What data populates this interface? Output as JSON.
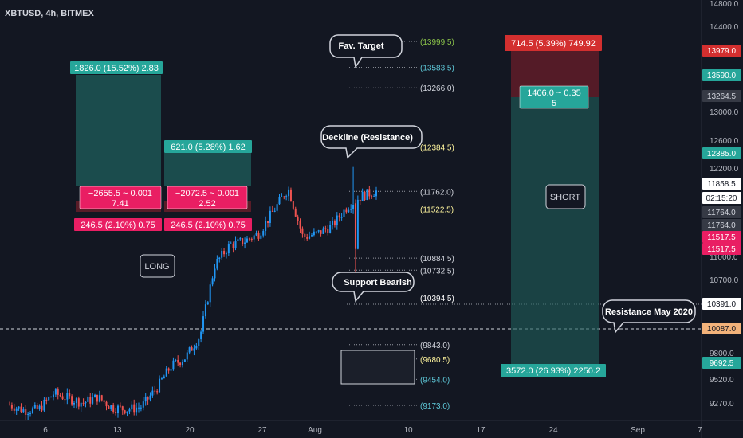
{
  "header": {
    "symbol_label": "XBTUSD, 4h, BITMEX"
  },
  "colors": {
    "background": "#131722",
    "up": "#2196f3",
    "down": "#ef5350",
    "profit_zone": "#1f5f5c",
    "loss_zone": "#6b1e2a",
    "label_teal": "#26a69a",
    "label_pink": "#e91e63",
    "label_red": "#d32f2f",
    "grey_label": "#363a45",
    "orange_label": "#f2b27a"
  },
  "chart_data": {
    "type": "candlestick",
    "y_axis": {
      "ticks": [
        "14800.0",
        "14400.0",
        "13000.0",
        "12600.0",
        "12200.0",
        "11800.0",
        "11400.0",
        "11000.0",
        "10700.0",
        "9800.0",
        "9520.0",
        "9270.0"
      ],
      "scale": "log"
    },
    "x_axis": {
      "ticks": [
        "6",
        "13",
        "20",
        "27",
        "Aug",
        "10",
        "17",
        "24",
        "Sep",
        "7"
      ]
    },
    "price_path": [
      {
        "t": "Jul 1",
        "p": 9180
      },
      {
        "t": "Jul 3",
        "p": 9120
      },
      {
        "t": "Jul 5",
        "p": 9130
      },
      {
        "t": "Jul 6",
        "p": 9300
      },
      {
        "t": "Jul 8",
        "p": 9250
      },
      {
        "t": "Jul 10",
        "p": 9200
      },
      {
        "t": "Jul 13",
        "p": 9260
      },
      {
        "t": "Jul 15",
        "p": 9150
      },
      {
        "t": "Jul 17",
        "p": 9130
      },
      {
        "t": "Jul 20",
        "p": 9160
      },
      {
        "t": "Jul 22",
        "p": 9350
      },
      {
        "t": "Jul 24",
        "p": 9600
      },
      {
        "t": "Jul 25",
        "p": 9700
      },
      {
        "t": "Jul 26",
        "p": 9950
      },
      {
        "t": "Jul 27",
        "p": 10800
      },
      {
        "t": "Jul 28",
        "p": 11050
      },
      {
        "t": "Jul 29",
        "p": 11100
      },
      {
        "t": "Jul 30",
        "p": 11200
      },
      {
        "t": "Jul 31",
        "p": 11500
      },
      {
        "t": "Aug 1",
        "p": 11800
      },
      {
        "t": "Aug 2",
        "p": 11150
      },
      {
        "t": "Aug 3",
        "p": 11200
      },
      {
        "t": "Aug 4",
        "p": 11300
      },
      {
        "t": "Aug 5",
        "p": 11550
      },
      {
        "t": "Aug 6",
        "p": 11700
      },
      {
        "t": "Aug 7",
        "p": 11764
      }
    ],
    "levels": [
      {
        "label": "(13999.5)",
        "value": 13999.5,
        "color": "#8bc34a"
      },
      {
        "label": "(13583.5)",
        "value": 13583.5,
        "color": "#5ec8d8"
      },
      {
        "label": "(13266.0)",
        "value": 13266.0,
        "color": "#d1d4dc"
      },
      {
        "label": "(12384.5)",
        "value": 12384.5,
        "color": "#fff59d"
      },
      {
        "label": "(11762.0)",
        "value": 11762.0,
        "color": "#d1d4dc"
      },
      {
        "label": "(11522.5)",
        "value": 11522.5,
        "color": "#fff59d"
      },
      {
        "label": "(10884.5)",
        "value": 10884.5,
        "color": "#d1d4dc"
      },
      {
        "label": "(10732.5)",
        "value": 10732.5,
        "color": "#d1d4dc"
      },
      {
        "label": "(10394.5)",
        "value": 10394.5,
        "color": "#ffffff"
      },
      {
        "label": "(9843.0)",
        "value": 9843.0,
        "color": "#d1d4dc"
      },
      {
        "label": "(9680.5)",
        "value": 9680.5,
        "color": "#fff59d"
      },
      {
        "label": "(9454.0)",
        "value": 9454.0,
        "color": "#5ec8d8"
      },
      {
        "label": "(9173.0)",
        "value": 9173.0,
        "color": "#5ec8d8"
      }
    ],
    "axis_price_labels": [
      {
        "text": "13979.0",
        "bg": "#d32f2f",
        "fg": "#ffffff"
      },
      {
        "text": "13590.0",
        "bg": "#26a69a",
        "fg": "#ffffff"
      },
      {
        "text": "13264.5",
        "bg": "#363a45",
        "fg": "#d1d4dc"
      },
      {
        "text": "12385.0",
        "bg": "#26a69a",
        "fg": "#ffffff"
      },
      {
        "text": "11858.5",
        "bg": "#ffffff",
        "fg": "#131722"
      },
      {
        "text": "02:15:20",
        "bg": "#ffffff",
        "fg": "#131722"
      },
      {
        "text": "11764.0",
        "bg": "#363a45",
        "fg": "#d1d4dc"
      },
      {
        "text": "11764.0",
        "bg": "#363a45",
        "fg": "#d1d4dc"
      },
      {
        "text": "11517.5",
        "bg": "#e91e63",
        "fg": "#ffffff"
      },
      {
        "text": "11517.5",
        "bg": "#e91e63",
        "fg": "#ffffff"
      },
      {
        "text": "10391.0",
        "bg": "#ffffff",
        "fg": "#131722"
      },
      {
        "text": "10087.0",
        "bg": "#f2b27a",
        "fg": "#131722"
      },
      {
        "text": "9692.5",
        "bg": "#26a69a",
        "fg": "#ffffff"
      }
    ],
    "positions": {
      "long1": {
        "target": "1826.0 (15.52%) 2.83",
        "center_line1": "−2655.5 ~ 0.001",
        "center_line2": "7.41",
        "stop": "246.5 (2.10%) 0.75"
      },
      "long2": {
        "target": "621.0 (5.28%) 1.62",
        "center_line1": "−2072.5 ~ 0.001",
        "center_line2": "2.52",
        "stop": "246.5 (2.10%) 0.75"
      },
      "short": {
        "stop": "714.5 (5.39%) 749.92",
        "center_line1": "1406.0 ~ 0.35",
        "center_line2": "5",
        "target": "3572.0 (26.93%) 2250.2"
      }
    },
    "annotations": {
      "fav_target": "Fav. Target",
      "decline": "Deckline (Resistance)",
      "support": "Support Bearish",
      "resistance_may": "Resistance May 2020",
      "long": "LONG",
      "short": "SHORT"
    }
  }
}
